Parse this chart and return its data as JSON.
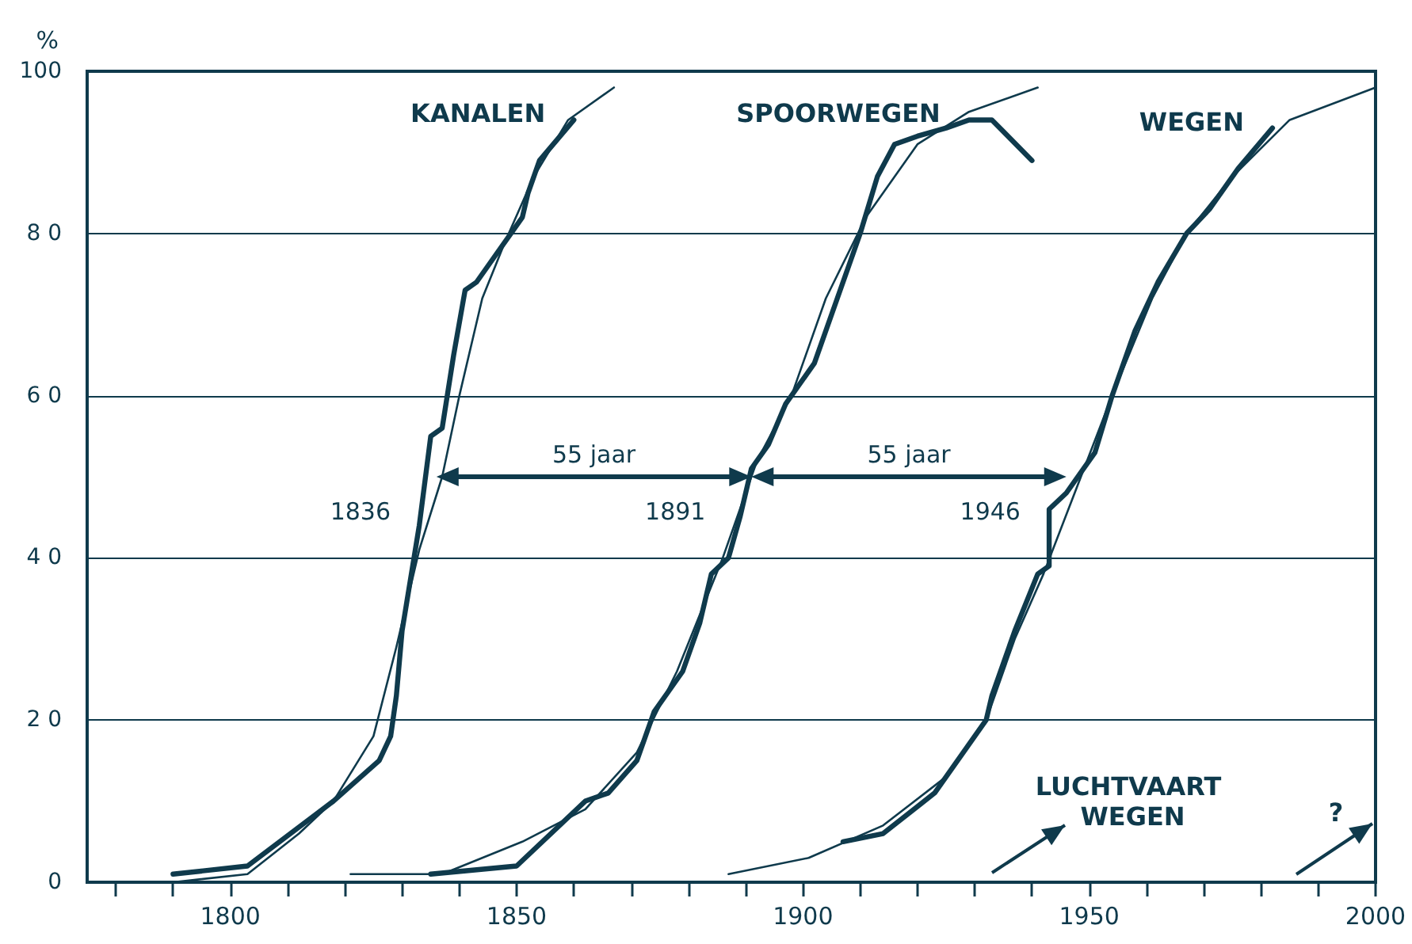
{
  "chart_data": {
    "type": "line",
    "ylabel": "%",
    "xlim": [
      1775,
      2000
    ],
    "xticks": [
      {
        "value": 1780,
        "label": null
      },
      {
        "value": 1790,
        "label": null
      },
      1800,
      {
        "value": 1810,
        "label": null
      },
      {
        "value": 1820,
        "label": null
      },
      {
        "value": 1830,
        "label": null
      },
      {
        "value": 1840,
        "label": null
      },
      1850,
      {
        "value": 1860,
        "label": null
      },
      {
        "value": 1870,
        "label": null
      },
      {
        "value": 1880,
        "label": null
      },
      {
        "value": 1890,
        "label": null
      },
      1900,
      {
        "value": 1910,
        "label": null
      },
      {
        "value": 1920,
        "label": null
      },
      {
        "value": 1930,
        "label": null
      },
      {
        "value": 1940,
        "label": null
      },
      1950,
      {
        "value": 1960,
        "label": null
      },
      {
        "value": 1970,
        "label": null
      },
      {
        "value": 1980,
        "label": null
      },
      {
        "value": 1990,
        "label": null
      },
      2000
    ],
    "ylim": [
      0,
      100
    ],
    "yticks": [
      0,
      {
        "value": 20,
        "label": "2 0"
      },
      {
        "value": 40,
        "label": "4 0"
      },
      {
        "value": 60,
        "label": "6 0"
      },
      {
        "value": 80,
        "label": "8 0"
      },
      100
    ],
    "grid": "y",
    "legend": false,
    "marker": "none",
    "line_style": "solid",
    "series": [
      {
        "name": "KANALEN",
        "color": "#0f3a4c",
        "x": [
          1790,
          1803,
          1818,
          1826,
          1828,
          1829,
          1830,
          1833,
          1835,
          1837,
          1839,
          1841,
          1843,
          1846,
          1849,
          1851,
          1852,
          1854,
          1860
        ],
        "values": [
          1,
          2,
          10,
          15,
          18,
          23,
          31,
          44,
          55,
          56,
          65,
          73,
          74,
          77,
          80,
          82,
          85,
          89,
          94
        ]
      },
      {
        "color": "#0f3a4c",
        "x": [
          1790,
          1803,
          1812,
          1818,
          1825,
          1829,
          1833,
          1837,
          1840,
          1844,
          1848,
          1853,
          1859,
          1867
        ],
        "values": [
          0,
          1,
          6,
          10,
          18,
          29,
          41,
          50,
          60,
          72,
          79,
          87,
          94,
          98
        ]
      },
      {
        "name": "SPOORWEGEN",
        "color": "#0f3a4c",
        "x": [
          1835,
          1850,
          1862,
          1866,
          1871,
          1874,
          1879,
          1882,
          1884,
          1887,
          1889,
          1891,
          1894,
          1897,
          1902,
          1906,
          1910,
          1913,
          1916,
          1920,
          1925,
          1929,
          1933,
          1940
        ],
        "values": [
          1,
          2,
          10,
          11,
          15,
          21,
          26,
          32,
          38,
          40,
          45,
          51,
          54,
          59,
          64,
          72,
          80,
          87,
          91,
          92,
          93,
          94,
          94,
          89
        ]
      },
      {
        "color": "#0f3a4c",
        "x": [
          1821,
          1837,
          1851,
          1862,
          1871,
          1878,
          1886,
          1892,
          1898,
          1904,
          1911,
          1920,
          1929,
          1941
        ],
        "values": [
          1,
          1,
          5,
          9,
          16,
          26,
          40,
          52,
          60,
          72,
          82,
          91,
          95,
          98
        ]
      },
      {
        "name": "WEGEN",
        "color": "#0f3a4c",
        "x": [
          1907,
          1914,
          1923,
          1928,
          1932,
          1933,
          1937,
          1941,
          1943,
          1943,
          1946,
          1951,
          1954,
          1958,
          1962,
          1967,
          1971,
          1976,
          1982
        ],
        "values": [
          5,
          6,
          11,
          16,
          20,
          23,
          31,
          38,
          39,
          46,
          48,
          53,
          60,
          68,
          74,
          80,
          83,
          88,
          93
        ]
      },
      {
        "color": "#0f3a4c",
        "x": [
          1887,
          1901,
          1914,
          1925,
          1932,
          1937,
          1942,
          1948,
          1954,
          1961,
          1967,
          1975,
          1985,
          2000
        ],
        "values": [
          1,
          3,
          7,
          13,
          20,
          30,
          38,
          49,
          60,
          72,
          80,
          87,
          94,
          98
        ]
      }
    ],
    "annotations": [
      {
        "text": "1836",
        "x": 1836,
        "y": 50
      },
      "55 jaar",
      {
        "text": "1891",
        "x": 1891,
        "y": 50
      },
      "55 jaar",
      {
        "text": "1946",
        "x": 1946,
        "y": 50
      },
      "LUCHTVAART WEGEN",
      "?"
    ]
  }
}
